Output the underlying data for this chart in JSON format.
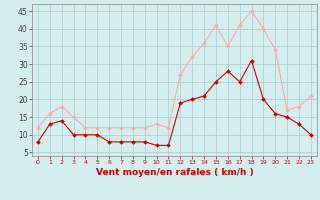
{
  "hours": [
    0,
    1,
    2,
    3,
    4,
    5,
    6,
    7,
    8,
    9,
    10,
    11,
    12,
    13,
    14,
    15,
    16,
    17,
    18,
    19,
    20,
    21,
    22,
    23
  ],
  "wind_mean": [
    8,
    13,
    14,
    10,
    10,
    10,
    8,
    8,
    8,
    8,
    7,
    7,
    19,
    20,
    21,
    25,
    28,
    25,
    31,
    20,
    16,
    15,
    13,
    10
  ],
  "wind_gust": [
    12,
    16,
    18,
    15,
    12,
    12,
    12,
    12,
    12,
    12,
    13,
    12,
    27,
    32,
    36,
    41,
    35,
    41,
    45,
    40,
    34,
    17,
    18,
    21
  ],
  "bg_color": "#d4eeee",
  "grid_color": "#aacccc",
  "mean_color": "#cc0000",
  "gust_color": "#ffaaaa",
  "xlabel": "Vent moyen/en rafales ( km/h )",
  "xlabel_color": "#cc0000",
  "ylabel_color": "#444444",
  "yticks": [
    5,
    10,
    15,
    20,
    25,
    30,
    35,
    40,
    45
  ],
  "ylim": [
    4,
    47
  ],
  "xlim": [
    -0.5,
    23.5
  ]
}
